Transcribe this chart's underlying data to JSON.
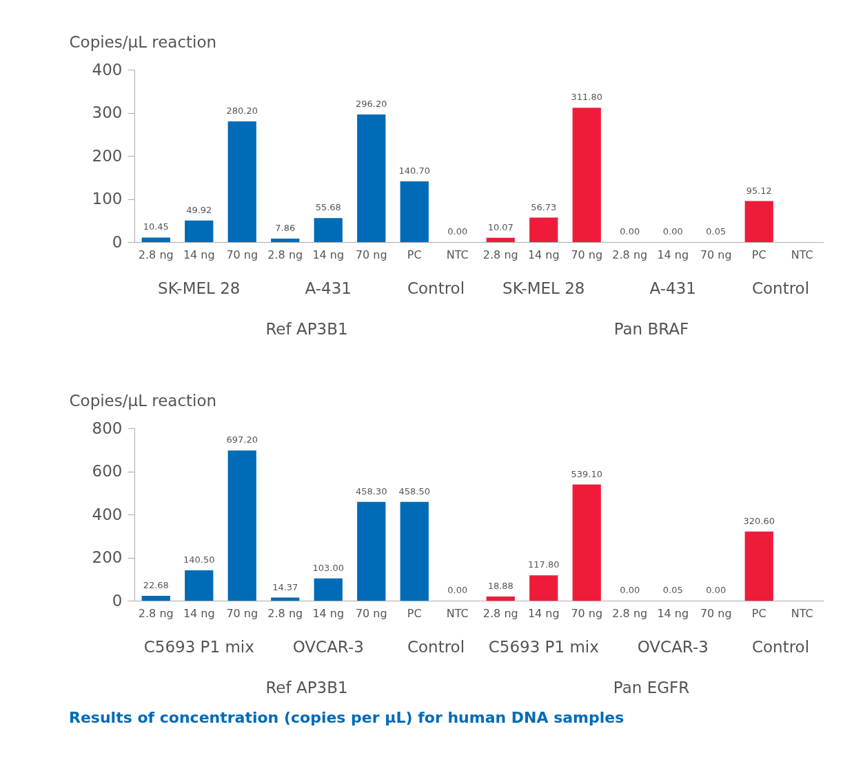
{
  "chart_data": [
    {
      "type": "bar",
      "ylabel": "Copies/µL reaction",
      "categories": [
        "2.8 ng",
        "14 ng",
        "70 ng",
        "2.8 ng",
        "14 ng",
        "70 ng",
        "PC",
        "NTC",
        "2.8 ng",
        "14 ng",
        "70 ng",
        "2.8 ng",
        "14 ng",
        "70 ng",
        "PC",
        "NTC"
      ],
      "values": [
        10.45,
        49.92,
        280.2,
        7.86,
        55.68,
        296.2,
        140.7,
        0.0,
        10.07,
        56.73,
        311.8,
        0.0,
        0.0,
        0.05,
        95.12,
        0
      ],
      "value_labels": [
        "10.45",
        "49.92",
        "280.20",
        "7.86",
        "55.68",
        "296.20",
        "140.70",
        "0.00",
        "10.07",
        "56.73",
        "311.80",
        "0.00",
        "0.00",
        "0.05",
        "95.12",
        null
      ],
      "colors": [
        "#006bb6",
        "#006bb6",
        "#006bb6",
        "#006bb6",
        "#006bb6",
        "#006bb6",
        "#006bb6",
        "#006bb6",
        "#ee1c3a",
        "#ee1c3a",
        "#ee1c3a",
        "#ee1c3a",
        "#ee1c3a",
        "#ee1c3a",
        "#ee1c3a",
        "#ee1c3a"
      ],
      "ylim": [
        0,
        400
      ],
      "yticks": [
        0,
        100,
        200,
        300,
        400
      ],
      "grid": false,
      "annotations": [
        "SK-MEL 28",
        "A-431",
        "Control",
        "SK-MEL 28",
        "A-431",
        "Control",
        "Ref AP3B1",
        "Pan BRAF"
      ]
    },
    {
      "type": "bar",
      "ylabel": "Copies/µL reaction",
      "categories": [
        "2.8 ng",
        "14 ng",
        "70 ng",
        "2.8 ng",
        "14 ng",
        "70 ng",
        "PC",
        "NTC",
        "2.8 ng",
        "14 ng",
        "70 ng",
        "2.8 ng",
        "14 ng",
        "70 ng",
        "PC",
        "NTC"
      ],
      "values": [
        22.68,
        140.5,
        697.2,
        14.37,
        103.0,
        458.3,
        458.5,
        0.0,
        18.88,
        117.8,
        539.1,
        0.0,
        0.05,
        0.0,
        320.6,
        0
      ],
      "value_labels": [
        "22.68",
        "140.50",
        "697.20",
        "14.37",
        "103.00",
        "458.30",
        "458.50",
        "0.00",
        "18.88",
        "117.80",
        "539.10",
        "0.00",
        "0.05",
        "0.00",
        "320.60",
        null
      ],
      "colors": [
        "#006bb6",
        "#006bb6",
        "#006bb6",
        "#006bb6",
        "#006bb6",
        "#006bb6",
        "#006bb6",
        "#006bb6",
        "#ee1c3a",
        "#ee1c3a",
        "#ee1c3a",
        "#ee1c3a",
        "#ee1c3a",
        "#ee1c3a",
        "#ee1c3a",
        "#ee1c3a"
      ],
      "ylim": [
        0,
        800
      ],
      "yticks": [
        0,
        200,
        400,
        600,
        800
      ],
      "grid": false,
      "annotations": [
        "C5693 P1 mix",
        "OVCAR-3",
        "Control",
        "C5693 P1 mix",
        "OVCAR-3",
        "Control",
        "Ref AP3B1",
        "Pan EGFR",
        "Results of concentration (copies per µL) for human DNA samples"
      ]
    }
  ]
}
